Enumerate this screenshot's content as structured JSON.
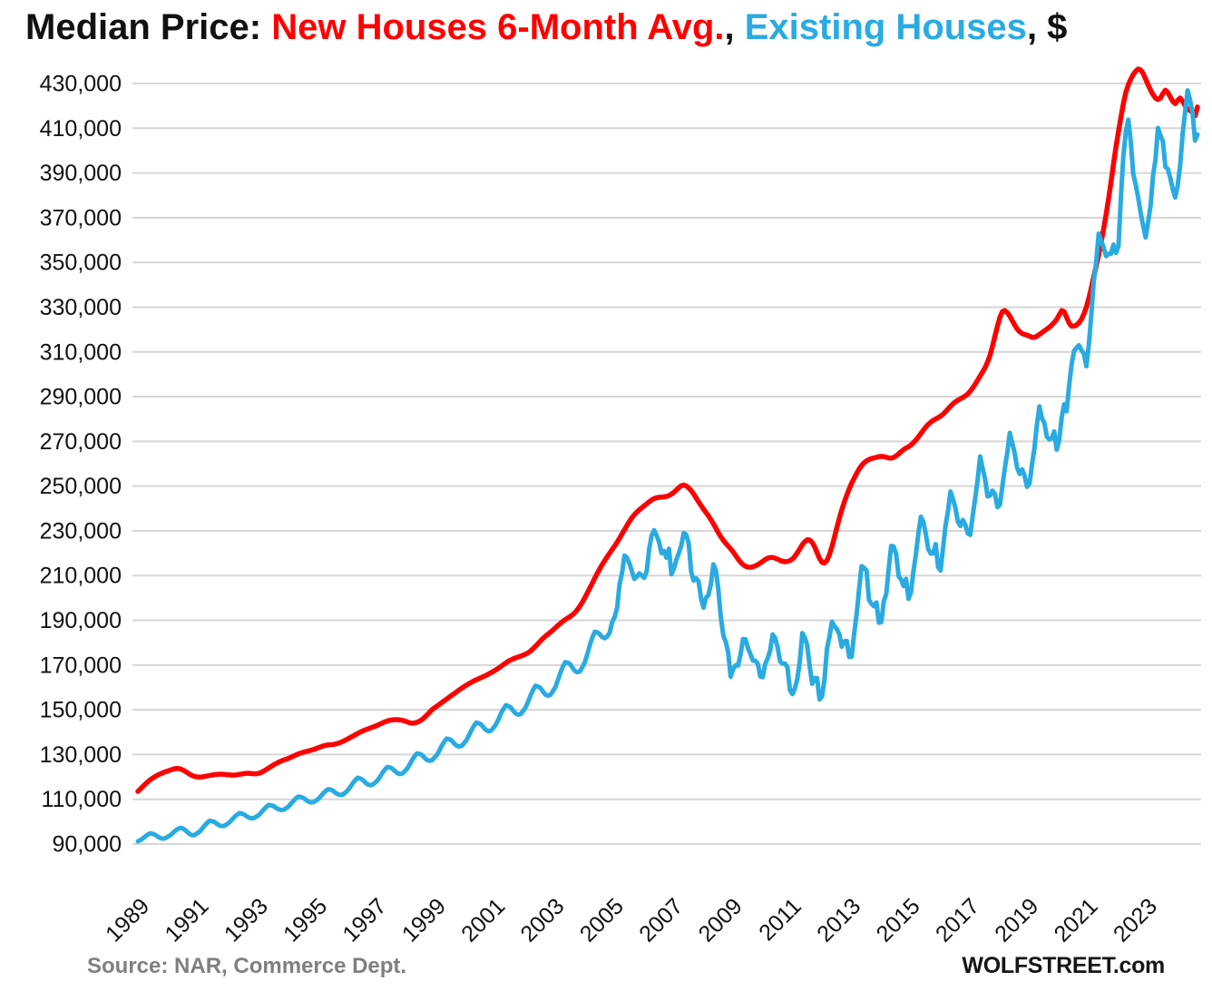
{
  "title": {
    "prefix": "Median Price: ",
    "series1": "New Houses 6-Month Avg.",
    "separator": ", ",
    "series2": "Existing Houses",
    "suffix": ", $"
  },
  "footer": {
    "source": "Source: NAR, Commerce Dept.",
    "brand": "WOLFSTREET.com"
  },
  "colors": {
    "new_houses": "#ff0000",
    "existing_houses": "#29abe2",
    "grid": "#d6d6d6",
    "axis_text": "#111111",
    "source_text": "#7f7f7f",
    "brand_text": "#161616"
  },
  "chart_data": {
    "type": "line",
    "title": "Median Price: New Houses 6-Month Avg., Existing Houses, $",
    "unit": "USD",
    "values_scale": 1000,
    "x_interval": "monthly",
    "x_start_year": 1989,
    "x_end": "2024-10",
    "x_tick_years": [
      1989,
      1991,
      1993,
      1995,
      1997,
      1999,
      2001,
      2003,
      2005,
      2007,
      2009,
      2011,
      2013,
      2015,
      2017,
      2019,
      2021,
      2023
    ],
    "y_ticks": [
      90000,
      110000,
      130000,
      150000,
      170000,
      190000,
      210000,
      230000,
      250000,
      270000,
      290000,
      310000,
      330000,
      350000,
      370000,
      390000,
      410000,
      430000
    ],
    "ylim": [
      90000,
      430000
    ],
    "grid": true,
    "legend_position": "in-title",
    "source": "Source: NAR, Commerce Dept.",
    "branding": "WOLFSTREET.com",
    "series": [
      {
        "name": "New Houses 6-Month Avg.",
        "key": "new-houses",
        "color_key": "new_houses",
        "values": [
          113.5,
          114.6,
          115.7,
          116.8,
          117.8,
          118.7,
          119.5,
          120.2,
          120.8,
          121.3,
          121.8,
          122.2,
          122.6,
          123.0,
          123.4,
          123.7,
          123.8,
          123.6,
          123.2,
          122.6,
          121.9,
          121.2,
          120.6,
          120.2,
          120.0,
          119.9,
          120.0,
          120.2,
          120.4,
          120.6,
          120.8,
          121.0,
          121.1,
          121.2,
          121.2,
          121.1,
          121.0,
          120.9,
          120.8,
          120.8,
          120.9,
          121.1,
          121.3,
          121.5,
          121.6,
          121.6,
          121.5,
          121.4,
          121.4,
          121.6,
          122.0,
          122.6,
          123.3,
          124.0,
          124.7,
          125.4,
          126.0,
          126.6,
          127.1,
          127.5,
          127.9,
          128.3,
          128.8,
          129.3,
          129.8,
          130.3,
          130.7,
          131.0,
          131.3,
          131.6,
          131.9,
          132.2,
          132.6,
          133.0,
          133.4,
          133.8,
          134.1,
          134.3,
          134.4,
          134.5,
          134.7,
          135.0,
          135.4,
          135.9,
          136.4,
          137.0,
          137.6,
          138.2,
          138.8,
          139.4,
          140.0,
          140.5,
          141.0,
          141.4,
          141.8,
          142.2,
          142.6,
          143.1,
          143.6,
          144.1,
          144.6,
          145.0,
          145.3,
          145.5,
          145.6,
          145.6,
          145.5,
          145.3,
          145.0,
          144.6,
          144.2,
          144.0,
          144.1,
          144.4,
          144.9,
          145.6,
          146.5,
          147.6,
          148.8,
          150.0,
          150.8,
          151.6,
          152.4,
          153.2,
          154.0,
          154.8,
          155.6,
          156.4,
          157.2,
          158.0,
          158.8,
          159.6,
          160.3,
          161.0,
          161.7,
          162.3,
          162.9,
          163.4,
          163.9,
          164.4,
          164.9,
          165.4,
          166.0,
          166.6,
          167.2,
          167.9,
          168.6,
          169.4,
          170.2,
          171.0,
          171.7,
          172.3,
          172.8,
          173.2,
          173.6,
          174.0,
          174.4,
          174.9,
          175.5,
          176.3,
          177.3,
          178.4,
          179.6,
          180.8,
          181.9,
          182.9,
          183.8,
          184.7,
          185.6,
          186.6,
          187.6,
          188.6,
          189.5,
          190.3,
          191.0,
          191.7,
          192.5,
          193.5,
          194.8,
          196.4,
          198.2,
          200.2,
          202.3,
          204.5,
          206.7,
          208.9,
          211.0,
          213.0,
          214.9,
          216.7,
          218.4,
          220.0,
          221.6,
          223.2,
          224.9,
          226.7,
          228.6,
          230.5,
          232.4,
          234.2,
          235.8,
          237.2,
          238.4,
          239.4,
          240.3,
          241.2,
          242.1,
          243.0,
          243.8,
          244.4,
          244.8,
          245.0,
          245.1,
          245.2,
          245.4,
          245.8,
          246.4,
          247.2,
          248.2,
          249.3,
          250.2,
          250.5,
          250.1,
          249.2,
          248.0,
          246.5,
          244.8,
          243.0,
          241.3,
          239.7,
          238.2,
          236.7,
          235.0,
          233.2,
          231.2,
          229.2,
          227.4,
          225.8,
          224.4,
          223.2,
          222.0,
          220.6,
          219.0,
          217.4,
          216.0,
          214.9,
          214.2,
          213.8,
          213.7,
          213.9,
          214.3,
          214.9,
          215.6,
          216.4,
          217.2,
          217.8,
          218.1,
          218.1,
          217.8,
          217.3,
          216.8,
          216.4,
          216.2,
          216.3,
          216.7,
          217.4,
          218.6,
          220.2,
          222.0,
          223.8,
          225.2,
          226.0,
          225.9,
          224.8,
          222.8,
          220.2,
          217.6,
          215.9,
          215.6,
          216.8,
          219.4,
          223.0,
          227.2,
          231.5,
          235.6,
          239.4,
          242.9,
          246.0,
          248.8,
          251.3,
          253.6,
          255.7,
          257.6,
          259.2,
          260.4,
          261.3,
          261.9,
          262.3,
          262.6,
          262.9,
          263.2,
          263.3,
          263.2,
          262.9,
          262.6,
          262.5,
          262.8,
          263.5,
          264.4,
          265.4,
          266.3,
          267.0,
          267.6,
          268.4,
          269.4,
          270.6,
          272.0,
          273.5,
          275.0,
          276.4,
          277.6,
          278.6,
          279.4,
          280.0,
          280.6,
          281.3,
          282.2,
          283.3,
          284.5,
          285.7,
          286.8,
          287.7,
          288.4,
          289.0,
          289.6,
          290.3,
          291.2,
          292.4,
          293.9,
          295.6,
          297.4,
          299.2,
          301.0,
          303.0,
          305.5,
          308.5,
          312.5,
          317.0,
          321.5,
          325.5,
          328.0,
          328.5,
          327.5,
          326.0,
          324.0,
          322.0,
          320.3,
          319.0,
          318.2,
          317.8,
          317.5,
          317.0,
          316.5,
          316.5,
          317.0,
          317.8,
          318.6,
          319.4,
          320.2,
          321.0,
          322.0,
          323.2,
          324.5,
          326.5,
          328.5,
          328.0,
          325.5,
          323.0,
          321.5,
          321.5,
          322.0,
          323.0,
          324.5,
          327.0,
          330.0,
          334.0,
          338.5,
          343.5,
          348.5,
          353.5,
          359.0,
          365.0,
          371.5,
          378.5,
          386.0,
          394.0,
          401.5,
          408.5,
          415.0,
          421.0,
          426.0,
          429.5,
          432.0,
          434.0,
          435.5,
          436.5,
          436.0,
          434.5,
          432.0,
          429.5,
          427.0,
          425.0,
          423.5,
          422.8,
          423.5,
          425.5,
          427.0,
          426.0,
          424.0,
          422.0,
          421.0,
          422.5,
          423.5,
          422.0,
          420.0,
          418.5,
          418.0,
          417.0,
          415.5,
          419.5
        ]
      },
      {
        "name": "Existing Houses",
        "key": "existing-houses",
        "color_key": "existing_houses",
        "values": [
          91.2,
          91.7,
          92.5,
          93.4,
          94.2,
          94.8,
          94.6,
          94.1,
          93.3,
          92.7,
          92.4,
          92.5,
          93.2,
          93.8,
          94.8,
          95.8,
          96.6,
          97.2,
          97.0,
          96.4,
          95.4,
          94.4,
          93.9,
          94.0,
          94.8,
          95.6,
          96.8,
          98.2,
          99.4,
          100.4,
          100.2,
          99.8,
          99.0,
          98.3,
          98.0,
          98.1,
          98.8,
          99.6,
          100.8,
          102.0,
          103.0,
          103.8,
          103.6,
          103.2,
          102.4,
          101.8,
          101.5,
          101.6,
          102.3,
          103.0,
          104.2,
          105.5,
          106.6,
          107.5,
          107.3,
          106.9,
          106.1,
          105.5,
          105.2,
          105.3,
          106.0,
          106.8,
          108.0,
          109.3,
          110.4,
          111.2,
          111.0,
          110.6,
          109.8,
          109.0,
          108.6,
          108.7,
          109.3,
          110.1,
          111.3,
          112.6,
          113.7,
          114.5,
          114.3,
          113.8,
          112.9,
          112.2,
          111.9,
          112.1,
          113.0,
          114.0,
          115.5,
          117.2,
          118.6,
          119.6,
          119.3,
          118.7,
          117.6,
          116.7,
          116.3,
          116.5,
          117.4,
          118.4,
          120.0,
          121.8,
          123.3,
          124.4,
          124.2,
          123.7,
          122.6,
          121.7,
          121.3,
          121.5,
          122.5,
          123.7,
          125.5,
          127.5,
          129.2,
          130.5,
          130.3,
          129.8,
          128.6,
          127.6,
          127.2,
          127.4,
          128.5,
          129.7,
          131.7,
          133.9,
          135.7,
          137.1,
          136.9,
          136.3,
          135.0,
          134.0,
          133.6,
          133.8,
          135.0,
          136.4,
          138.5,
          140.8,
          142.8,
          144.3,
          144.0,
          143.4,
          142.0,
          140.9,
          140.4,
          140.7,
          142.0,
          143.5,
          145.8,
          148.3,
          150.4,
          152.0,
          151.7,
          151.0,
          149.5,
          148.3,
          147.8,
          148.1,
          149.5,
          151.1,
          153.7,
          156.5,
          158.9,
          160.7,
          160.4,
          159.7,
          158.1,
          156.8,
          156.3,
          156.7,
          158.3,
          160.1,
          163.1,
          166.4,
          169.2,
          171.3,
          171.1,
          170.4,
          168.7,
          167.3,
          166.8,
          167.2,
          169.2,
          171.4,
          175.0,
          179.0,
          182.4,
          184.9,
          184.6,
          183.8,
          182.5,
          182.0,
          182.8,
          184.5,
          189.0,
          191.5,
          195.5,
          206.0,
          211.0,
          219.0,
          218.0,
          215.5,
          212.0,
          208.5,
          209.5,
          211.0,
          210.0,
          209.0,
          212.0,
          222.0,
          228.0,
          230.3,
          228.0,
          225.0,
          220.0,
          221.0,
          218.0,
          222.0,
          210.6,
          213.0,
          217.0,
          220.0,
          223.5,
          229.0,
          228.3,
          224.5,
          211.7,
          207.8,
          208.8,
          207.5,
          199.8,
          195.6,
          200.1,
          201.3,
          206.1,
          215.0,
          212.4,
          203.9,
          191.6,
          183.3,
          180.3,
          175.7,
          164.8,
          168.2,
          169.9,
          169.8,
          174.7,
          181.6,
          181.5,
          177.5,
          174.9,
          172.0,
          171.9,
          170.5,
          164.9,
          164.6,
          170.5,
          173.1,
          176.6,
          183.7,
          182.1,
          177.9,
          171.7,
          170.6,
          170.6,
          169.0,
          158.8,
          157.0,
          159.6,
          163.7,
          172.0,
          184.3,
          182.3,
          178.8,
          169.5,
          161.6,
          164.2,
          164.1,
          154.6,
          156.0,
          163.8,
          177.4,
          182.6,
          189.4,
          187.3,
          186.1,
          183.8,
          178.2,
          180.6,
          180.8,
          173.6,
          173.8,
          184.3,
          192.8,
          204.0,
          214.2,
          213.5,
          212.2,
          199.2,
          197.4,
          196.3,
          198.0,
          188.9,
          189.2,
          198.5,
          201.7,
          213.4,
          223.3,
          222.9,
          219.8,
          209.7,
          208.3,
          205.3,
          208.5,
          199.6,
          202.6,
          212.1,
          219.4,
          228.7,
          236.3,
          234.0,
          228.7,
          221.9,
          219.8,
          220.0,
          224.1,
          213.7,
          212.3,
          222.7,
          232.5,
          238.9,
          247.6,
          244.1,
          240.2,
          234.1,
          232.2,
          234.9,
          232.7,
          228.9,
          228.2,
          236.6,
          244.8,
          252.8,
          263.3,
          258.1,
          253.1,
          245.4,
          245.8,
          248.0,
          246.5,
          240.6,
          241.7,
          249.8,
          257.9,
          265.1,
          273.8,
          269.3,
          264.8,
          258.1,
          255.4,
          257.5,
          254.7,
          249.7,
          251.2,
          259.7,
          267.0,
          277.5,
          285.7,
          280.4,
          278.2,
          272.1,
          270.9,
          271.3,
          274.5,
          266.3,
          270.4,
          280.6,
          286.6,
          283.5,
          294.4,
          304.1,
          310.4,
          311.8,
          313.0,
          310.8,
          309.2,
          303.6,
          313.0,
          326.3,
          341.6,
          350.3,
          362.9,
          359.9,
          356.7,
          352.8,
          353.9,
          353.9,
          358.0,
          354.3,
          357.3,
          379.3,
          397.6,
          408.4,
          413.8,
          403.8,
          389.5,
          384.8,
          378.8,
          372.1,
          366.5,
          361.2,
          367.8,
          375.4,
          388.8,
          396.1,
          410.1,
          406.7,
          404.1,
          392.7,
          391.8,
          387.8,
          382.6,
          379.1,
          384.5,
          393.5,
          407.6,
          417.2,
          426.9,
          422.6,
          416.7,
          404.5,
          407.2
        ]
      }
    ]
  }
}
